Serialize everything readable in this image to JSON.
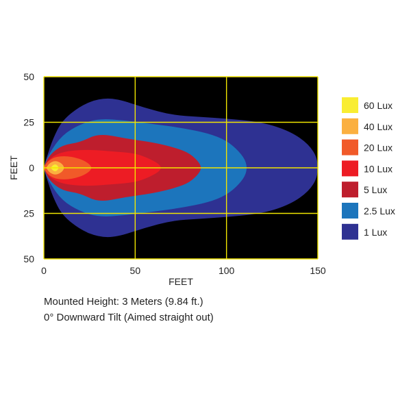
{
  "chart_data": {
    "type": "contour",
    "xlabel": "FEET",
    "ylabel": "FEET",
    "x_ticks": [
      "0",
      "50",
      "100",
      "150"
    ],
    "y_ticks": [
      "50",
      "25",
      "0",
      "25",
      "50"
    ],
    "xlim": [
      0,
      150
    ],
    "ylim": [
      -50,
      50
    ],
    "grid": true,
    "grid_color": "#f2e600",
    "plot_background": "#000000",
    "legend_position": "right",
    "series": [
      {
        "name": "1 Lux",
        "color": "#2e3192",
        "max_distance_ft": 150,
        "half_width_profile": [
          [
            0,
            0.8
          ],
          [
            2,
            7
          ],
          [
            5,
            16
          ],
          [
            10,
            26
          ],
          [
            20,
            34
          ],
          [
            30,
            38
          ],
          [
            40,
            38
          ],
          [
            55,
            33
          ],
          [
            70,
            29
          ],
          [
            85,
            28
          ],
          [
            100,
            27
          ],
          [
            120,
            25
          ],
          [
            135,
            20
          ],
          [
            145,
            13
          ],
          [
            150,
            5
          ]
        ]
      },
      {
        "name": "2.5 Lux",
        "color": "#1c75bc",
        "max_distance_ft": 111,
        "half_width_profile": [
          [
            0,
            0.7
          ],
          [
            3,
            8
          ],
          [
            10,
            18
          ],
          [
            20,
            24
          ],
          [
            30,
            27
          ],
          [
            45,
            26
          ],
          [
            60,
            24
          ],
          [
            75,
            22
          ],
          [
            90,
            19
          ],
          [
            100,
            15
          ],
          [
            107,
            9
          ],
          [
            111,
            3
          ]
        ]
      },
      {
        "name": "5 Lux",
        "color": "#be1e2d",
        "max_distance_ft": 86,
        "half_width_profile": [
          [
            0,
            0.6
          ],
          [
            3,
            7
          ],
          [
            10,
            12.5
          ],
          [
            20,
            14
          ],
          [
            30,
            19
          ],
          [
            45,
            16
          ],
          [
            60,
            14
          ],
          [
            72,
            11
          ],
          [
            80,
            8
          ],
          [
            86,
            2
          ]
        ]
      },
      {
        "name": "10 Lux",
        "color": "#ed1c24",
        "max_distance_ft": 64,
        "half_width_profile": [
          [
            0,
            0.5
          ],
          [
            3,
            5
          ],
          [
            8,
            8
          ],
          [
            15,
            9.5
          ],
          [
            25,
            10
          ],
          [
            38,
            9
          ],
          [
            50,
            8
          ],
          [
            58,
            5
          ],
          [
            64,
            1.5
          ]
        ]
      },
      {
        "name": "20 Lux",
        "color": "#f15a29",
        "max_distance_ft": 26,
        "half_width_profile": [
          [
            0,
            0.4
          ],
          [
            2,
            3.5
          ],
          [
            6,
            6
          ],
          [
            12,
            6.5
          ],
          [
            18,
            5.5
          ],
          [
            23,
            3.5
          ],
          [
            26,
            1
          ]
        ]
      },
      {
        "name": "40 Lux",
        "color": "#fbb040",
        "max_distance_ft": 11,
        "half_width_profile": [
          [
            1.5,
            0.3
          ],
          [
            3,
            2.5
          ],
          [
            6,
            4
          ],
          [
            9,
            3
          ],
          [
            11,
            1
          ]
        ]
      },
      {
        "name": "60 Lux",
        "color": "#f9ed32",
        "max_distance_ft": 8,
        "half_width_profile": [
          [
            4,
            0.3
          ],
          [
            5,
            1.5
          ],
          [
            6.5,
            2
          ],
          [
            7.5,
            1.2
          ],
          [
            8,
            0.3
          ]
        ]
      }
    ],
    "legend": [
      {
        "label": "60 Lux",
        "color": "#f9ed32"
      },
      {
        "label": "40 Lux",
        "color": "#fbb040"
      },
      {
        "label": "20 Lux",
        "color": "#f15a29"
      },
      {
        "label": "10 Lux",
        "color": "#ed1c24"
      },
      {
        "label": "5 Lux",
        "color": "#be1e2d"
      },
      {
        "label": "2.5 Lux",
        "color": "#1c75bc"
      },
      {
        "label": "1 Lux",
        "color": "#2e3192"
      }
    ]
  },
  "caption": {
    "line1": "Mounted Height: 3 Meters (9.84 ft.)",
    "line2": "0° Downward Tilt (Aimed straight out)"
  }
}
